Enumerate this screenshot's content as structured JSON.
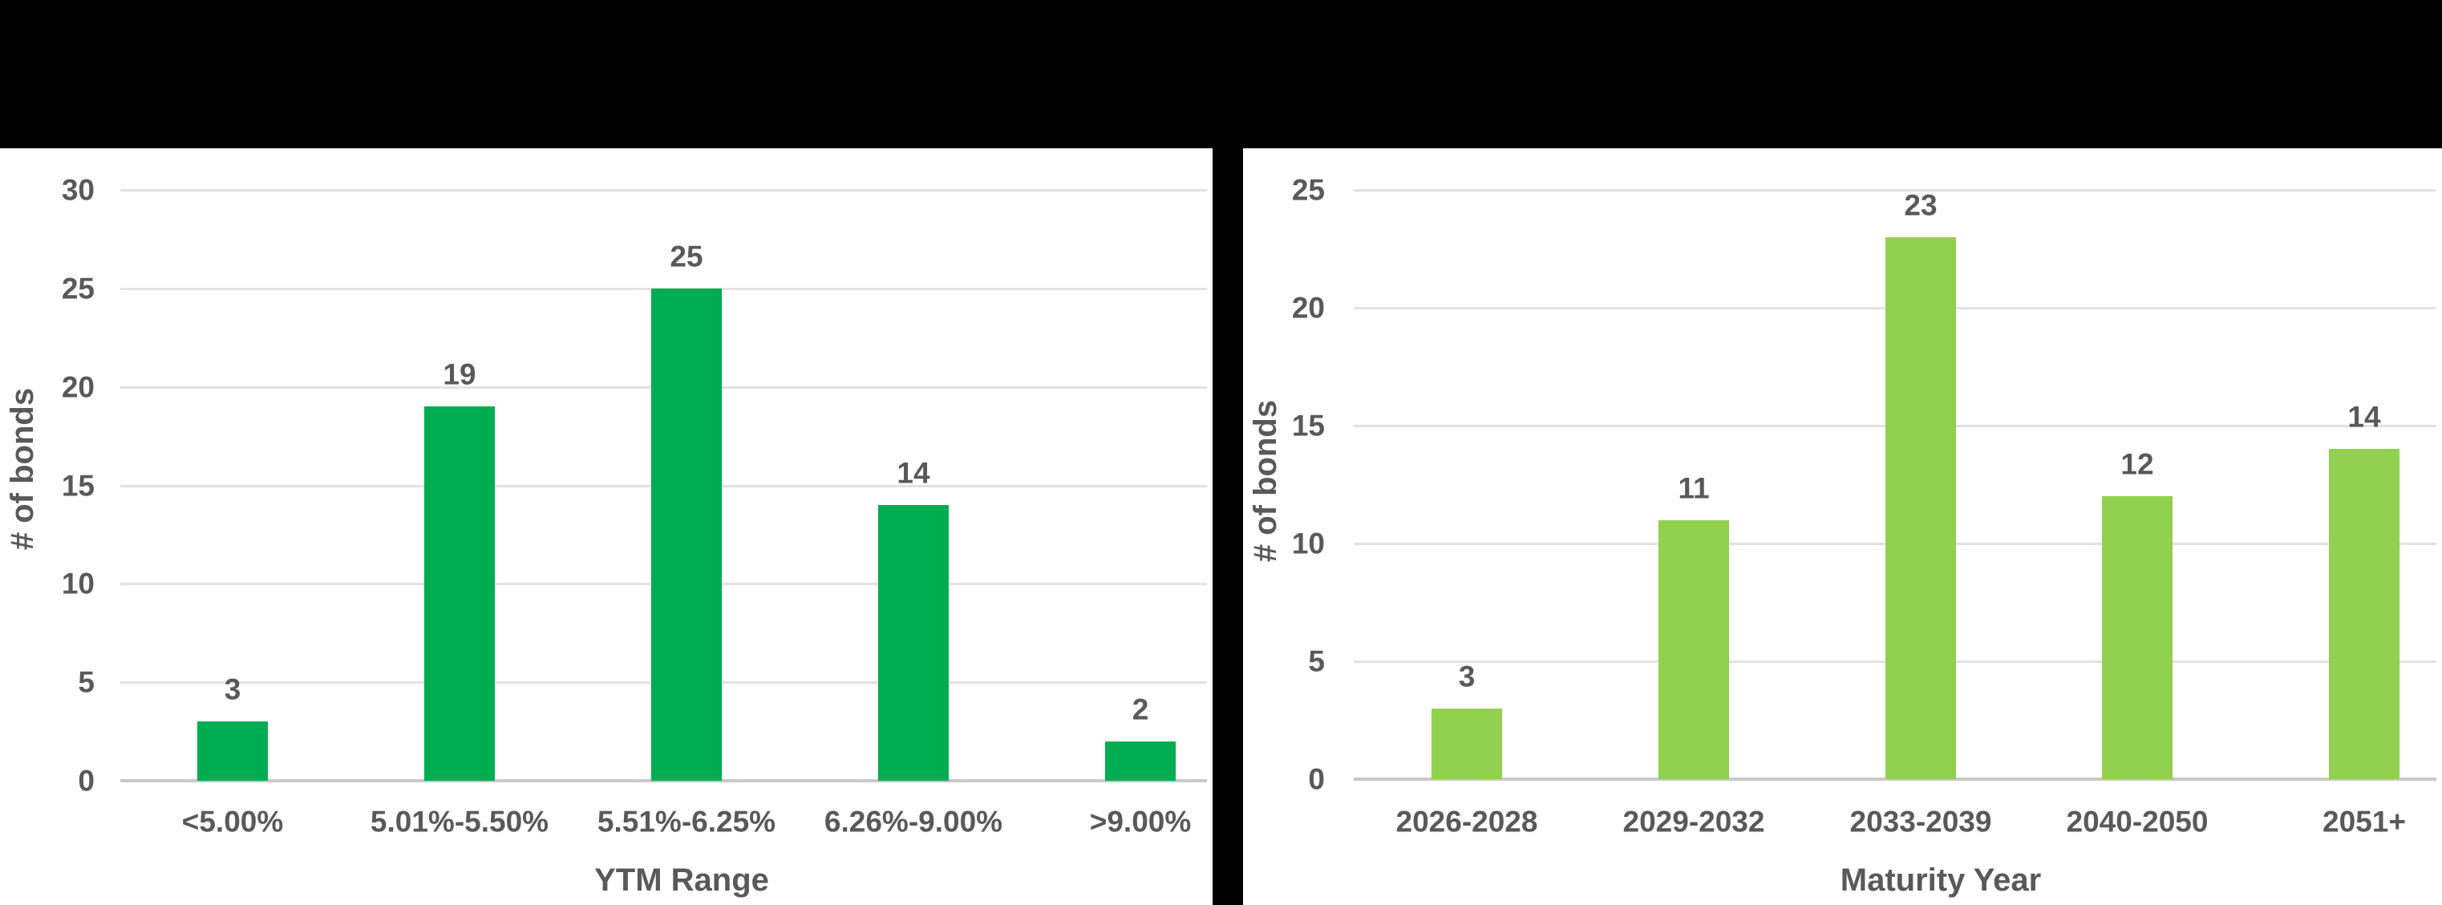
{
  "page": {
    "background_color": "#000000",
    "panel_background_color": "#FFFFFF"
  },
  "chart_data": [
    {
      "type": "bar",
      "title": "",
      "xlabel": "YTM Range",
      "ylabel": "# of bonds",
      "categories": [
        "<5.00%",
        "5.01%-5.50%",
        "5.51%-6.25%",
        "6.26%-9.00%",
        ">9.00%"
      ],
      "values": [
        3,
        19,
        25,
        14,
        2
      ],
      "data_labels": [
        "3",
        "19",
        "25",
        "14",
        "2"
      ],
      "ylim": [
        0,
        30
      ],
      "ytick_interval": 5,
      "yticks": [
        "0",
        "5",
        "10",
        "15",
        "20",
        "25",
        "30"
      ],
      "grid": true,
      "legend": "none",
      "bar_color": "#00AC50",
      "text_color": "#595959",
      "gridline_color": "#E2E2E2",
      "axisline_color": "#C8C8C8"
    },
    {
      "type": "bar",
      "title": "",
      "xlabel": "Maturity Year",
      "ylabel": "# of bonds",
      "categories": [
        "2026-2028",
        "2029-2032",
        "2033-2039",
        "2040-2050",
        "2051+"
      ],
      "values": [
        3,
        11,
        23,
        12,
        14
      ],
      "data_labels": [
        "3",
        "11",
        "23",
        "12",
        "14"
      ],
      "ylim": [
        0,
        25
      ],
      "ytick_interval": 5,
      "yticks": [
        "0",
        "5",
        "10",
        "15",
        "20",
        "25"
      ],
      "grid": true,
      "legend": "none",
      "bar_color": "#92D050",
      "text_color": "#595959",
      "gridline_color": "#E2E2E2",
      "axisline_color": "#C8C8C8"
    }
  ]
}
